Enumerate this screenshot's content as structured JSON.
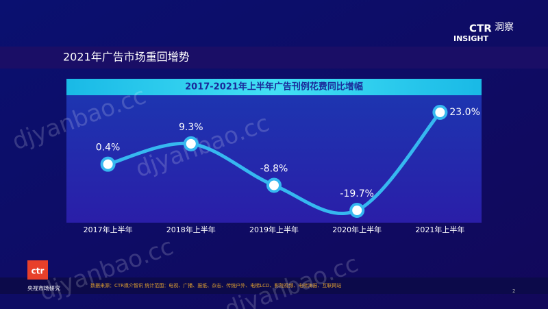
{
  "header": {
    "title": "2021年广告市场重回增势",
    "logo": "CTR",
    "logo_sub": "INSIGHT",
    "logo_cn": "洞察"
  },
  "chart_data": {
    "type": "line",
    "title": "2017-2021年上半年广告刊例花费同比增幅",
    "categories": [
      "2017年上半年",
      "2018年上半年",
      "2019年上半年",
      "2020年上半年",
      "2021年上半年"
    ],
    "values": [
      0.4,
      9.3,
      -8.8,
      -19.7,
      23.0
    ],
    "value_labels": [
      "0.4%",
      "9.3%",
      "-8.8%",
      "-19.7%",
      "23.0%"
    ],
    "color": "#36b8f0"
  },
  "footer": {
    "source": "数据来源：CTR媒介智讯 统计范围：电视、广播、报纸、杂志、传统户外、电梯LCD、影院视频、电梯海报、互联网站",
    "page": "2",
    "brand": "ctr",
    "brand_cn": "央视市场研究"
  },
  "watermarks": [
    "djyanbao.cc",
    "djyanbao.cc",
    "djyanbao.cc",
    "djyanbao.cc"
  ]
}
